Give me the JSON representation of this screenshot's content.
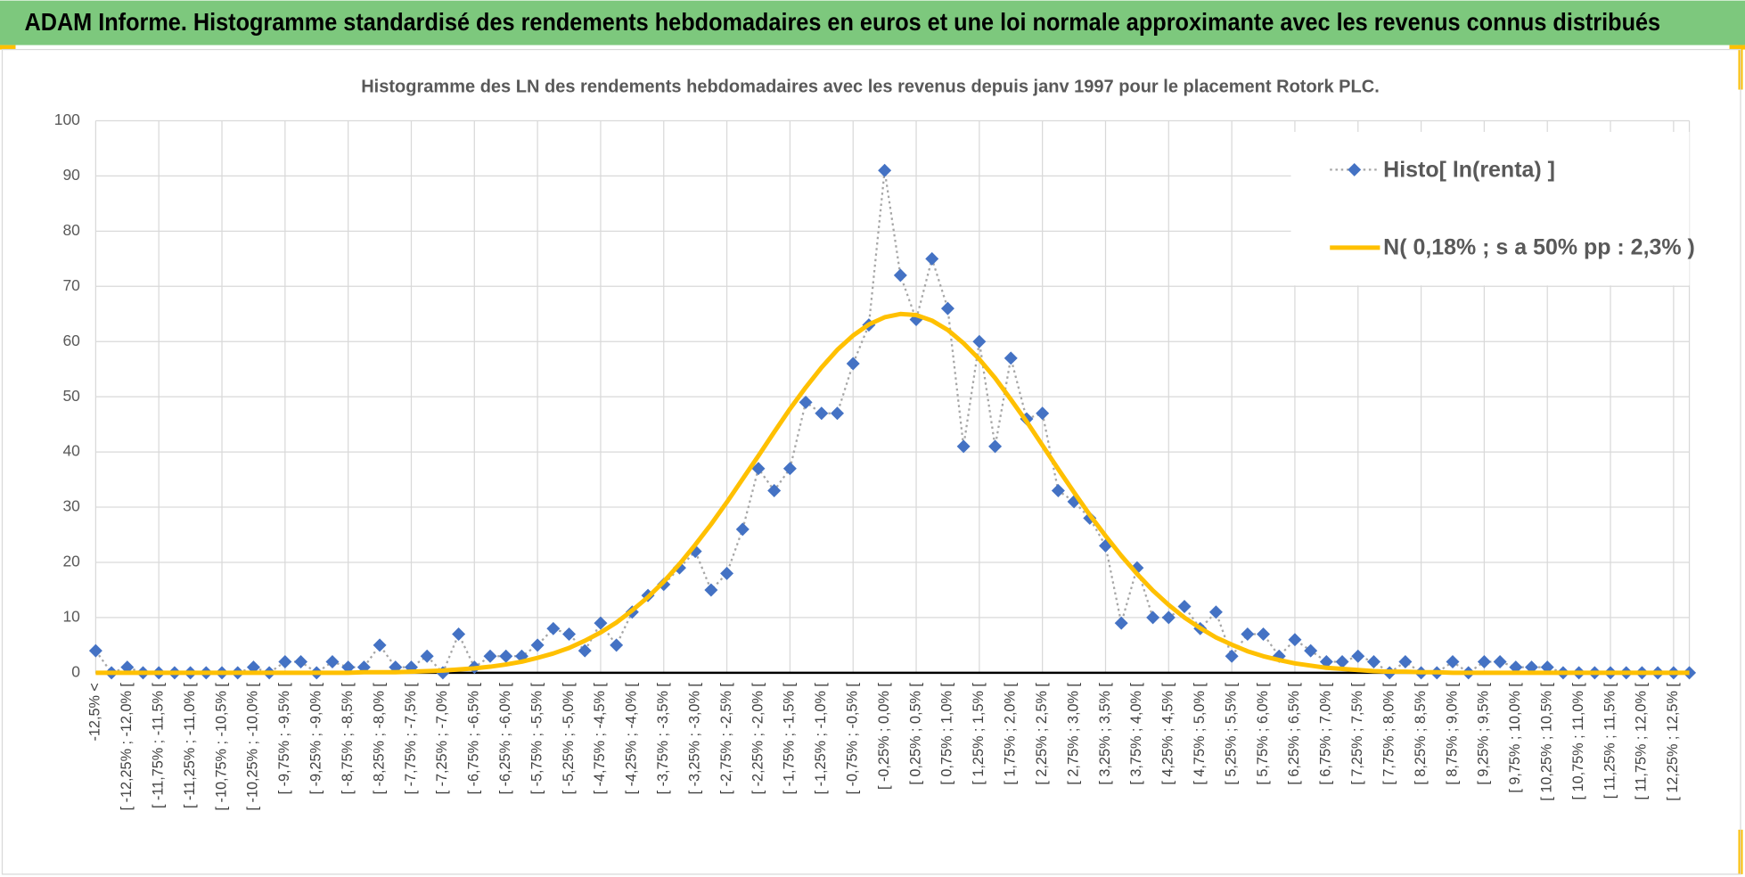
{
  "header": {
    "title": "ADAM Informe. Histogramme standardisé des rendements hebdomadaires en euros et une loi normale approximante avec les revenus connus distribués"
  },
  "chart_data": {
    "type": "line",
    "title": "Histogramme  des LN des rendements hebdomadaires avec les revenus depuis janv 1997 pour le placement Rotork PLC.",
    "categories": [
      "-12,5% <",
      null,
      "[ -12,25% ; -12,0% [",
      null,
      "[ -11,75% ; -11,5% [",
      null,
      "[ -11,25% ; -11,0% [",
      null,
      "[ -10,75% ; -10,5% [",
      null,
      "[ -10,25% ; -10,0% [",
      null,
      "[ -9,75% ; -9,5% [",
      null,
      "[ -9,25% ; -9,0% [",
      null,
      "[ -8,75% ; -8,5% [",
      null,
      "[ -8,25% ; -8,0% [",
      null,
      "[ -7,75% ; -7,5% [",
      null,
      "[ -7,25% ; -7,0% [",
      null,
      "[ -6,75% ; -6,5% [",
      null,
      "[ -6,25% ; -6,0% [",
      null,
      "[ -5,75% ; -5,5% [",
      null,
      "[ -5,25% ; -5,0% [",
      null,
      "[ -4,75% ; -4,5% [",
      null,
      "[ -4,25% ; -4,0% [",
      null,
      "[ -3,75% ; -3,5% [",
      null,
      "[ -3,25% ; -3,0% [",
      null,
      "[ -2,75% ; -2,5% [",
      null,
      "[ -2,25% ; -2,0% [",
      null,
      "[ -1,75% ; -1,5% [",
      null,
      "[ -1,25% ; -1,0% [",
      null,
      "[ -0,75% ; -0,5% [",
      null,
      "[ -0,25% ; 0,0% [",
      null,
      "[ 0,25% ; 0,5% [",
      null,
      "[ 0,75% ; 1,0% [",
      null,
      "[ 1,25% ; 1,5% [",
      null,
      "[ 1,75% ; 2,0% [",
      null,
      "[ 2,25% ; 2,5% [",
      null,
      "[ 2,75% ; 3,0% [",
      null,
      "[ 3,25% ; 3,5% [",
      null,
      "[ 3,75% ; 4,0% [",
      null,
      "[ 4,25% ; 4,5% [",
      null,
      "[ 4,75% ; 5,0% [",
      null,
      "[ 5,25% ; 5,5% [",
      null,
      "[ 5,75% ; 6,0% [",
      null,
      "[ 6,25% ; 6,5% [",
      null,
      "[ 6,75% ; 7,0% [",
      null,
      "[ 7,25% ; 7,5% [",
      null,
      "[ 7,75% ; 8,0% [",
      null,
      "[ 8,25% ; 8,5% [",
      null,
      "[ 8,75% ; 9,0% [",
      null,
      "[ 9,25% ; 9,5% [",
      null,
      "[ 9,75% ; 10,0% [",
      null,
      "[ 10,25% ; 10,5% [",
      null,
      "[ 10,75% ; 11,0% [",
      null,
      "[ 11,25% ; 11,5% [",
      null,
      "[ 11,75% ; 12,0% [",
      null,
      "[ 12,25% ; 12,5% [",
      null
    ],
    "series": [
      {
        "name": "Histo[ ln(renta) ]",
        "color": "#4472c4",
        "line_color": "#a6a6a6",
        "line_style": "dotted",
        "marker": "diamond",
        "values": [
          4,
          0,
          1,
          0,
          0,
          0,
          0,
          0,
          0,
          0,
          1,
          0,
          2,
          2,
          0,
          2,
          1,
          1,
          5,
          1,
          1,
          3,
          0,
          7,
          1,
          3,
          3,
          3,
          5,
          8,
          7,
          4,
          9,
          5,
          11,
          14,
          16,
          19,
          22,
          15,
          18,
          26,
          37,
          33,
          37,
          49,
          47,
          47,
          56,
          63,
          91,
          72,
          64,
          75,
          66,
          41,
          60,
          41,
          57,
          46,
          47,
          33,
          31,
          28,
          23,
          9,
          19,
          10,
          10,
          12,
          8,
          11,
          3,
          7,
          7,
          3,
          6,
          4,
          2,
          2,
          3,
          2,
          0,
          2,
          0,
          0,
          2,
          0,
          2,
          2,
          1,
          1,
          1,
          0,
          0,
          0,
          0,
          0,
          0,
          0,
          0,
          0
        ]
      },
      {
        "name": "N( 0,18% ; s a 50% pp : 2,3% )",
        "color": "#ffc000",
        "line_color": "#ffc000",
        "line_style": "solid",
        "marker": "none",
        "values": [
          0,
          0,
          0,
          0,
          0,
          0,
          0,
          0,
          0,
          0,
          0,
          0,
          0,
          0,
          0,
          0,
          0,
          0.1,
          0.1,
          0.1,
          0.2,
          0.3,
          0.4,
          0.6,
          0.8,
          1.1,
          1.5,
          2.0,
          2.7,
          3.5,
          4.5,
          5.8,
          7.3,
          9.1,
          11.3,
          13.7,
          16.5,
          19.7,
          23.2,
          26.9,
          30.9,
          35.1,
          39.3,
          43.6,
          47.8,
          51.7,
          55.3,
          58.5,
          61.1,
          63.1,
          64.4,
          65.0,
          64.8,
          63.8,
          62.1,
          59.7,
          56.8,
          53.4,
          49.5,
          45.5,
          41.2,
          36.9,
          32.7,
          28.6,
          24.8,
          21.2,
          17.9,
          14.9,
          12.3,
          10.0,
          8.1,
          6.4,
          5.1,
          3.9,
          3.0,
          2.3,
          1.7,
          1.3,
          0.9,
          0.7,
          0.5,
          0.3,
          0.2,
          0.2,
          0.1,
          0.1,
          0,
          0,
          0,
          0,
          0,
          0,
          0,
          0,
          0,
          0,
          0,
          0,
          0,
          0,
          0,
          0
        ]
      }
    ],
    "ylim": [
      0,
      100
    ],
    "yticks": [
      0,
      10,
      20,
      30,
      40,
      50,
      60,
      70,
      80,
      90,
      100
    ],
    "grid": true,
    "legend": "upper right"
  }
}
